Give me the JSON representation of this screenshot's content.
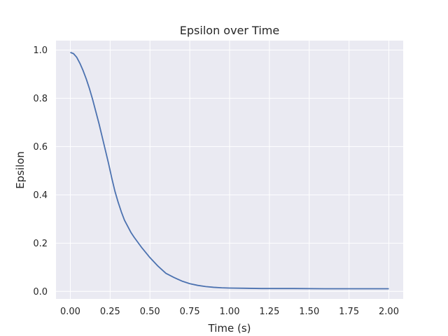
{
  "chart_data": {
    "type": "line",
    "title": "Epsilon over Time",
    "xlabel": "Time (s)",
    "ylabel": "Epsilon",
    "xlim": [
      -0.09,
      2.09
    ],
    "ylim": [
      -0.031,
      1.039
    ],
    "grid": true,
    "legend": "none",
    "xticks": [
      0.0,
      0.25,
      0.5,
      0.75,
      1.0,
      1.25,
      1.5,
      1.75,
      2.0
    ],
    "xtick_labels": [
      "0.00",
      "0.25",
      "0.50",
      "0.75",
      "1.00",
      "1.25",
      "1.50",
      "1.75",
      "2.00"
    ],
    "yticks": [
      0.0,
      0.2,
      0.4,
      0.6,
      0.8,
      1.0
    ],
    "ytick_labels": [
      "0.0",
      "0.2",
      "0.4",
      "0.6",
      "0.8",
      "1.0"
    ],
    "colors": {
      "line": "#4c72b0",
      "plot_background": "#eaeaf2",
      "grid": "#ffffff"
    },
    "series": [
      {
        "x": [
          0.0,
          0.02,
          0.04,
          0.06,
          0.08,
          0.1,
          0.12,
          0.14,
          0.16,
          0.18,
          0.2,
          0.22,
          0.24,
          0.26,
          0.28,
          0.3,
          0.32,
          0.34,
          0.36,
          0.38,
          0.4,
          0.45,
          0.5,
          0.55,
          0.6,
          0.65,
          0.7,
          0.75,
          0.8,
          0.85,
          0.9,
          0.95,
          1.0,
          1.1,
          1.2,
          1.4,
          1.6,
          1.8,
          2.0
        ],
        "y": [
          0.99,
          0.985,
          0.97,
          0.945,
          0.915,
          0.88,
          0.84,
          0.795,
          0.745,
          0.695,
          0.64,
          0.585,
          0.53,
          0.47,
          0.415,
          0.37,
          0.33,
          0.295,
          0.27,
          0.245,
          0.225,
          0.18,
          0.14,
          0.105,
          0.075,
          0.058,
          0.043,
          0.032,
          0.025,
          0.02,
          0.017,
          0.015,
          0.014,
          0.013,
          0.012,
          0.012,
          0.011,
          0.011,
          0.011
        ]
      }
    ]
  }
}
